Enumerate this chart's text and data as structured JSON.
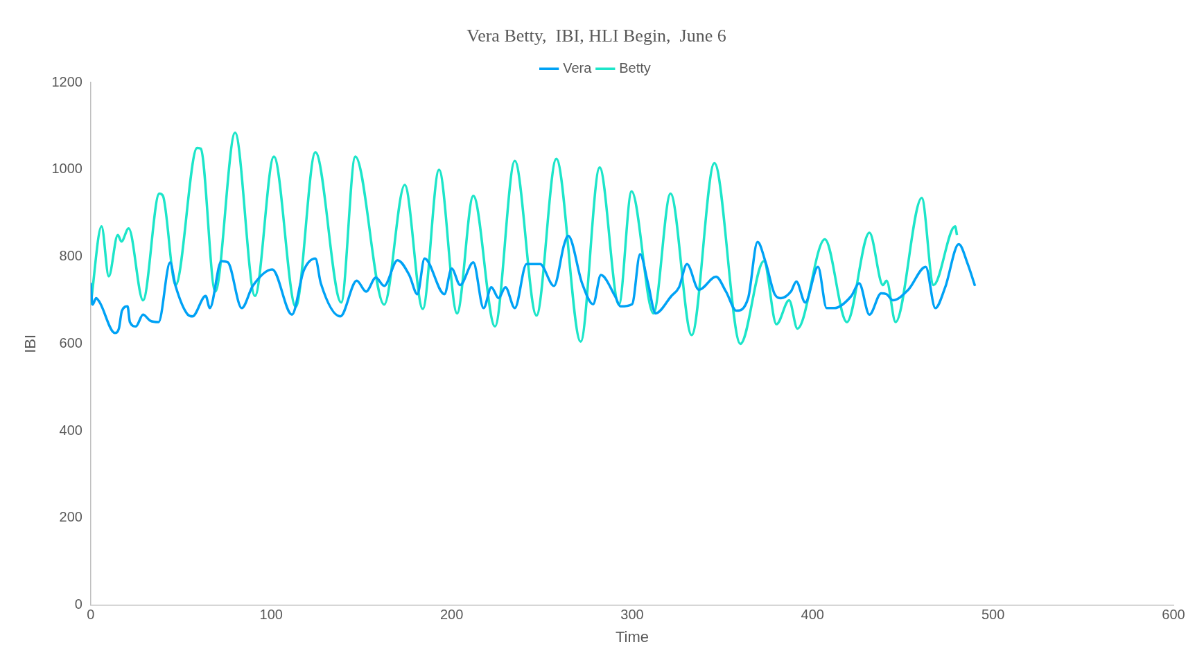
{
  "chart_data": {
    "type": "line",
    "title": "Vera Betty,  IBI, HLI Begin,  June 6",
    "xlabel": "Time",
    "ylabel": "IBI",
    "xlim": [
      0,
      600
    ],
    "xticks": [
      0,
      100,
      200,
      300,
      400,
      500,
      600
    ],
    "ylim": [
      0,
      1200
    ],
    "yticks": [
      0,
      200,
      400,
      600,
      800,
      1000,
      1200
    ],
    "grid": false,
    "legend": "top",
    "marker": "none",
    "line_style": "solid",
    "series": [
      {
        "name": "Vera",
        "color": "#00a2f5",
        "x": [
          0,
          1,
          3,
          5,
          13.4,
          15.6,
          17.3,
          20.4,
          21.7,
          25,
          29,
          33,
          37.6,
          44,
          47,
          53.8,
          56.4,
          63.7,
          66,
          72.4,
          76,
          83.7,
          89.8,
          100.6,
          111.5,
          118,
          124.5,
          127.5,
          138.3,
          147.4,
          152.6,
          158,
          162.6,
          170,
          176.5,
          181,
          185,
          196,
          200,
          204.7,
          212,
          217.7,
          222,
          226,
          229.8,
          235,
          241.5,
          249,
          256.7,
          262.4,
          264.6,
          272.3,
          278.4,
          282.7,
          290.5,
          293.6,
          300,
          304.4,
          308.8,
          313,
          321.8,
          326,
          330.4,
          337,
          346.5,
          352,
          357.8,
          364.3,
          369.5,
          374,
          379,
          382.5,
          388,
          391,
          395.9,
          403,
          407.8,
          412,
          421.5,
          425.8,
          431.5,
          438,
          441,
          444.5,
          453,
          462.7,
          468,
          473.5,
          481,
          486,
          490
        ],
        "values": [
          740,
          690,
          705,
          695,
          625,
          635,
          676,
          686,
          650,
          640,
          667,
          653,
          650,
          787,
          733,
          667,
          663,
          710,
          682,
          790,
          787,
          682,
          733,
          771,
          667,
          768,
          796,
          739,
          663,
          745,
          720,
          752,
          733,
          792,
          758,
          714,
          796,
          714,
          773,
          735,
          787,
          682,
          730,
          705,
          730,
          682,
          783,
          783,
          733,
          829,
          848,
          739,
          691,
          758,
          710,
          686,
          691,
          806,
          739,
          670,
          710,
          730,
          783,
          724,
          754,
          720,
          676,
          705,
          834,
          787,
          714,
          705,
          720,
          743,
          695,
          777,
          682,
          682,
          710,
          739,
          667,
          716,
          714,
          700,
          724,
          777,
          682,
          730,
          829,
          783,
          733
        ]
      },
      {
        "name": "Betty",
        "color": "#1de5c9",
        "x": [
          0,
          6,
          10,
          15,
          17,
          21,
          29,
          38,
          40,
          47,
          59,
          61,
          69,
          80,
          91,
          101.5,
          113.6,
          124.5,
          138.8,
          146.6,
          162.6,
          174,
          184,
          193,
          203,
          212,
          224,
          235,
          247,
          258,
          271.5,
          282,
          292.7,
          299.7,
          311.8,
          321.3,
          333,
          345.6,
          360,
          373,
          380,
          387,
          391.6,
          406.8,
          419,
          431.5,
          439,
          441,
          446,
          460.5,
          467,
          479,
          480
        ],
        "values": [
          690,
          870,
          755,
          850,
          835,
          865,
          700,
          945,
          940,
          735,
          1050,
          1048,
          720,
          1085,
          710,
          1030,
          685,
          1040,
          695,
          1030,
          690,
          965,
          680,
          1000,
          670,
          940,
          640,
          1020,
          665,
          1025,
          605,
          1005,
          690,
          950,
          670,
          945,
          620,
          1015,
          600,
          790,
          645,
          700,
          635,
          840,
          650,
          855,
          735,
          745,
          650,
          935,
          735,
          870,
          850
        ]
      }
    ]
  }
}
